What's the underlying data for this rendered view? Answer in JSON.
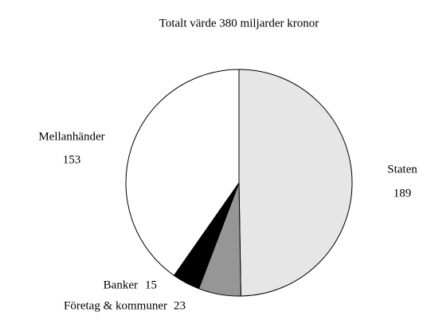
{
  "chart_data": {
    "type": "pie",
    "title": "Totalt värde 380 miljarder kronor",
    "categories": [
      "Staten",
      "Företag & kommuner",
      "Banker",
      "Mellanhänder"
    ],
    "values": [
      189,
      23,
      15,
      153
    ],
    "colors": [
      "#e6e6e6",
      "#969696",
      "#000000",
      "#ffffff"
    ]
  }
}
